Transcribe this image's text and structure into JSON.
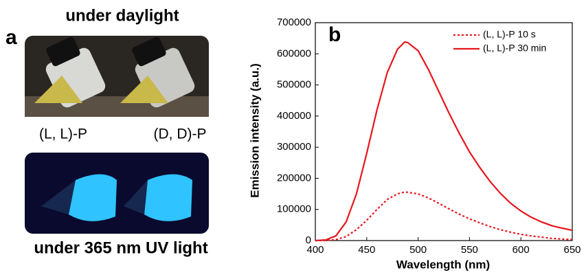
{
  "panel_a": {
    "label": "a",
    "top_caption": "under daylight",
    "left_sample": "(L, L)-P",
    "right_sample": "(D, D)-P",
    "bottom_caption": "under 365 nm UV light"
  },
  "chart_data": {
    "type": "line",
    "panel_label": "b",
    "x_label": "Wavelength (nm)",
    "y_label": "Emission intensity (a.u.)",
    "x": [
      400,
      410,
      420,
      430,
      440,
      450,
      460,
      470,
      480,
      487,
      490,
      500,
      510,
      520,
      530,
      540,
      550,
      560,
      570,
      580,
      590,
      600,
      610,
      620,
      630,
      640,
      650
    ],
    "series": [
      {
        "name": "(L, L)-P 10 s",
        "color": "#e8141b",
        "dash": "dotted",
        "values": [
          0,
          500,
          3000,
          13000,
          35000,
          65000,
          100000,
          132000,
          150000,
          156000,
          155000,
          150000,
          137000,
          120000,
          102000,
          85000,
          70000,
          57000,
          45000,
          35000,
          27000,
          20000,
          15000,
          11000,
          7000,
          5000,
          3000
        ]
      },
      {
        "name": "(L, L)-P 30 min",
        "color": "#e8141b",
        "dash": "solid",
        "values": [
          0,
          2000,
          15000,
          60000,
          150000,
          280000,
          420000,
          540000,
          615000,
          638000,
          636000,
          610000,
          550000,
          480000,
          410000,
          345000,
          285000,
          235000,
          190000,
          152000,
          120000,
          95000,
          75000,
          60000,
          48000,
          40000,
          33000
        ]
      }
    ],
    "xlim": [
      400,
      650
    ],
    "xticks": [
      400,
      450,
      500,
      550,
      600,
      650
    ],
    "ylim": [
      0,
      700000
    ],
    "yticks": [
      0,
      100000,
      200000,
      300000,
      400000,
      500000,
      600000,
      700000
    ],
    "legend": "upper right"
  }
}
